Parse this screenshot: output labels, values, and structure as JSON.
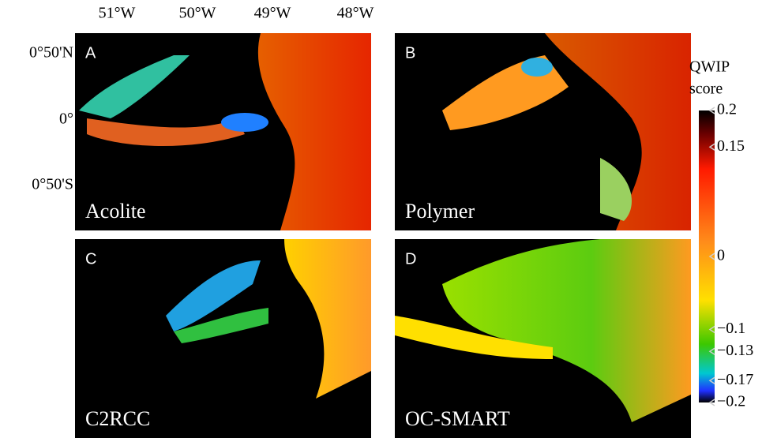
{
  "axes": {
    "x_labels": [
      "51°W",
      "50°W",
      "49°W",
      "48°W"
    ],
    "y_labels": [
      "0°50'N",
      "0°",
      "0°50'S"
    ]
  },
  "panels": [
    {
      "letter": "A",
      "name": "Acolite"
    },
    {
      "letter": "B",
      "name": "Polymer"
    },
    {
      "letter": "C",
      "name": "C2RCC"
    },
    {
      "letter": "D",
      "name": "OC-SMART"
    }
  ],
  "colorbar": {
    "title": [
      "QWIP",
      "score"
    ],
    "lim": [
      -0.2,
      0.2
    ],
    "ticks": [
      {
        "value": 0.2,
        "label": "0.2"
      },
      {
        "value": 0.15,
        "label": "0.15"
      },
      0,
      {
        "value": -0.1,
        "label": "−0.1"
      },
      {
        "value": -0.13,
        "label": "−0.13"
      },
      {
        "value": -0.17,
        "label": "−0.17"
      },
      {
        "value": -0.2,
        "label": "−0.2"
      }
    ]
  }
}
